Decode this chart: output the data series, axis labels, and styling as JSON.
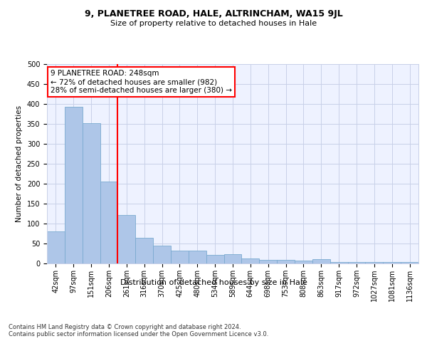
{
  "title1": "9, PLANETREE ROAD, HALE, ALTRINCHAM, WA15 9JL",
  "title2": "Size of property relative to detached houses in Hale",
  "xlabel": "Distribution of detached houses by size in Hale",
  "ylabel": "Number of detached properties",
  "categories": [
    "42sqm",
    "97sqm",
    "151sqm",
    "206sqm",
    "261sqm",
    "316sqm",
    "370sqm",
    "425sqm",
    "480sqm",
    "534sqm",
    "589sqm",
    "644sqm",
    "698sqm",
    "753sqm",
    "808sqm",
    "863sqm",
    "917sqm",
    "972sqm",
    "1027sqm",
    "1081sqm",
    "1136sqm"
  ],
  "values": [
    80,
    392,
    352,
    205,
    122,
    64,
    44,
    32,
    32,
    22,
    23,
    13,
    9,
    9,
    7,
    10,
    4,
    4,
    4,
    3,
    4
  ],
  "bar_color": "#aec6e8",
  "bar_edge_color": "#7aaad0",
  "vline_color": "red",
  "annotation_text": "9 PLANETREE ROAD: 248sqm\n← 72% of detached houses are smaller (982)\n28% of semi-detached houses are larger (380) →",
  "annotation_box_color": "white",
  "annotation_box_edgecolor": "red",
  "ylim": [
    0,
    500
  ],
  "yticks": [
    0,
    50,
    100,
    150,
    200,
    250,
    300,
    350,
    400,
    450,
    500
  ],
  "footer": "Contains HM Land Registry data © Crown copyright and database right 2024.\nContains public sector information licensed under the Open Government Licence v3.0.",
  "bg_color": "#eef2ff",
  "grid_color": "#c8d0e8",
  "title1_fontsize": 9,
  "title2_fontsize": 8,
  "xlabel_fontsize": 8,
  "ylabel_fontsize": 7.5,
  "tick_fontsize": 7,
  "footer_fontsize": 6,
  "annot_fontsize": 7.5
}
